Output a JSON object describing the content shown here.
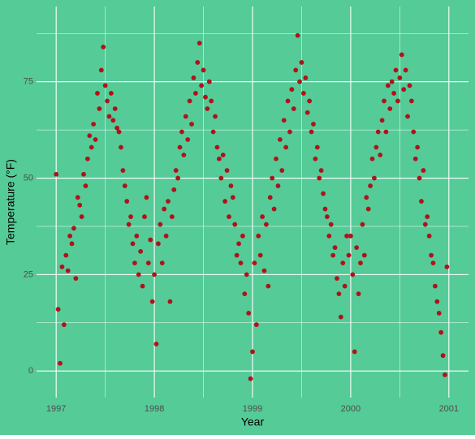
{
  "chart_data": {
    "type": "scatter",
    "x_label": "Year",
    "y_label": "Temperature (°F)",
    "xlim": [
      1996.8,
      2001.2
    ],
    "ylim": [
      -6.9,
      94.5
    ],
    "xticks": [
      1997,
      1998,
      1999,
      2000,
      2001
    ],
    "yticks": [
      0,
      25,
      50,
      75
    ],
    "grid": true,
    "background": "#55cb97",
    "grid_color": "#ffffff",
    "series": [
      {
        "color": "#b0121b",
        "x": [
          1997,
          1997.02,
          1997.04,
          1997.06,
          1997.08,
          1997.1,
          1997.12,
          1997.14,
          1997.16,
          1997.18,
          1997.2,
          1997.22,
          1997.24,
          1997.26,
          1997.28,
          1997.3,
          1997.32,
          1997.34,
          1997.36,
          1997.38,
          1997.4,
          1997.42,
          1997.44,
          1997.46,
          1997.48,
          1997.5,
          1997.52,
          1997.54,
          1997.56,
          1997.58,
          1997.6,
          1997.62,
          1997.64,
          1997.66,
          1997.68,
          1997.7,
          1997.72,
          1997.74,
          1997.76,
          1997.78,
          1997.8,
          1997.82,
          1997.84,
          1997.86,
          1997.88,
          1997.9,
          1997.92,
          1997.94,
          1997.96,
          1997.98,
          1998,
          1998.02,
          1998.04,
          1998.06,
          1998.08,
          1998.1,
          1998.12,
          1998.14,
          1998.16,
          1998.18,
          1998.2,
          1998.22,
          1998.24,
          1998.26,
          1998.28,
          1998.3,
          1998.32,
          1998.34,
          1998.36,
          1998.38,
          1998.4,
          1998.42,
          1998.44,
          1998.46,
          1998.48,
          1998.5,
          1998.52,
          1998.54,
          1998.56,
          1998.58,
          1998.6,
          1998.62,
          1998.64,
          1998.66,
          1998.68,
          1998.7,
          1998.72,
          1998.74,
          1998.76,
          1998.78,
          1998.8,
          1998.82,
          1998.84,
          1998.86,
          1998.88,
          1998.9,
          1998.92,
          1998.94,
          1998.96,
          1998.98,
          1999,
          1999.02,
          1999.04,
          1999.06,
          1999.08,
          1999.1,
          1999.12,
          1999.14,
          1999.16,
          1999.18,
          1999.2,
          1999.22,
          1999.24,
          1999.26,
          1999.28,
          1999.3,
          1999.32,
          1999.34,
          1999.36,
          1999.38,
          1999.4,
          1999.42,
          1999.44,
          1999.46,
          1999.48,
          1999.5,
          1999.52,
          1999.54,
          1999.56,
          1999.58,
          1999.6,
          1999.62,
          1999.64,
          1999.66,
          1999.68,
          1999.7,
          1999.72,
          1999.74,
          1999.76,
          1999.78,
          1999.8,
          1999.82,
          1999.84,
          1999.86,
          1999.88,
          1999.9,
          1999.92,
          1999.94,
          1999.96,
          1999.98,
          2000,
          2000.02,
          2000.04,
          2000.06,
          2000.08,
          2000.1,
          2000.12,
          2000.14,
          2000.16,
          2000.18,
          2000.2,
          2000.22,
          2000.24,
          2000.26,
          2000.28,
          2000.3,
          2000.32,
          2000.34,
          2000.36,
          2000.38,
          2000.4,
          2000.42,
          2000.44,
          2000.46,
          2000.48,
          2000.5,
          2000.52,
          2000.54,
          2000.56,
          2000.58,
          2000.6,
          2000.62,
          2000.64,
          2000.66,
          2000.68,
          2000.7,
          2000.72,
          2000.74,
          2000.76,
          2000.78,
          2000.8,
          2000.82,
          2000.84,
          2000.86,
          2000.88,
          2000.9,
          2000.92,
          2000.94,
          2000.96,
          2000.98
        ],
        "values": [
          51,
          16,
          2,
          27,
          12,
          30,
          26,
          35,
          33,
          37,
          24,
          45,
          43,
          40,
          51,
          48,
          55,
          61,
          58,
          64,
          60,
          72,
          68,
          78,
          84,
          74,
          70,
          66,
          72,
          65,
          68,
          63,
          62,
          58,
          52,
          48,
          44,
          38,
          40,
          33,
          28,
          35,
          25,
          31,
          22,
          40,
          45,
          28,
          34,
          18,
          25,
          7,
          33,
          38,
          28,
          42,
          35,
          44,
          18,
          40,
          47,
          52,
          50,
          58,
          62,
          56,
          66,
          60,
          70,
          64,
          76,
          72,
          80,
          85,
          74,
          78,
          71,
          68,
          75,
          70,
          62,
          66,
          58,
          55,
          50,
          56,
          44,
          52,
          40,
          48,
          45,
          38,
          30,
          33,
          28,
          35,
          20,
          25,
          15,
          -2,
          5,
          28,
          12,
          35,
          30,
          40,
          26,
          38,
          22,
          45,
          50,
          42,
          55,
          48,
          60,
          52,
          65,
          58,
          70,
          62,
          73,
          68,
          78,
          87,
          75,
          80,
          72,
          76,
          67,
          70,
          62,
          64,
          55,
          58,
          50,
          52,
          46,
          42,
          40,
          35,
          38,
          30,
          32,
          24,
          20,
          14,
          28,
          22,
          35,
          30,
          35,
          25,
          5,
          32,
          20,
          28,
          38,
          30,
          45,
          42,
          48,
          55,
          50,
          58,
          62,
          56,
          65,
          70,
          62,
          74,
          68,
          75,
          72,
          78,
          70,
          76,
          82,
          73,
          78,
          66,
          74,
          70,
          62,
          55,
          58,
          50,
          44,
          52,
          38,
          40,
          35,
          30,
          28,
          22,
          18,
          15,
          10,
          4,
          -1,
          27
        ]
      }
    ]
  }
}
